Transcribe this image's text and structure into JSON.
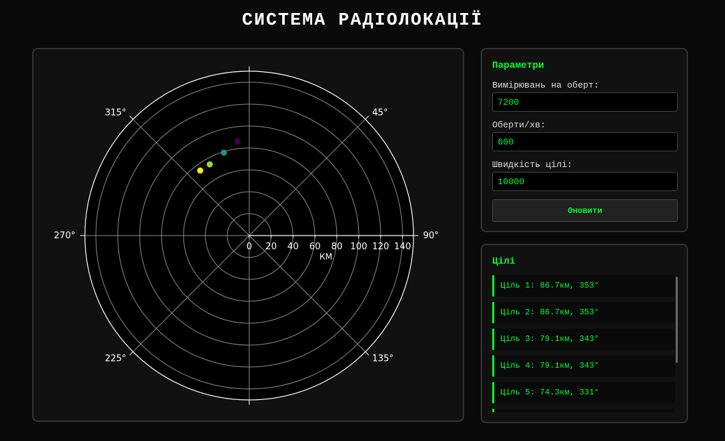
{
  "title": "СИСТЕМА РАДІОЛОКАЦІЇ",
  "params": {
    "heading": "Параметри",
    "fields": [
      {
        "label": "Вимірювань на оберт:",
        "value": "7200"
      },
      {
        "label": "Оберти/хв:",
        "value": "600"
      },
      {
        "label": "Швидкість цілі:",
        "value": "10000"
      }
    ],
    "button_label": "Оновити"
  },
  "targets": {
    "heading": "Цілі",
    "items": [
      "Ціль 1: 86.7км, 353°",
      "Ціль 2: 86.7км, 353°",
      "Ціль 3: 79.1км, 343°",
      "Ціль 4: 79.1км, 343°",
      "Ціль 5: 74.3км, 331°",
      ""
    ]
  },
  "chart_data": {
    "type": "scatter",
    "projection": "polar",
    "angle_ticks": [
      "45°",
      "90°",
      "135°",
      "225°",
      "270°",
      "315°"
    ],
    "angle_tick_values": [
      45,
      90,
      135,
      225,
      270,
      315
    ],
    "radial_ticks": [
      "0",
      "20",
      "40",
      "60",
      "80",
      "100",
      "120",
      "140"
    ],
    "radial_tick_values": [
      0,
      20,
      40,
      60,
      80,
      100,
      120,
      140
    ],
    "radial_label": "КМ",
    "rlim": [
      0,
      150
    ],
    "grid": true,
    "points": [
      {
        "angle": 353,
        "r": 86.7,
        "color": "#440154"
      },
      {
        "angle": 343,
        "r": 79.1,
        "color": "#21918c"
      },
      {
        "angle": 331,
        "r": 74.3,
        "color": "#90d743"
      },
      {
        "angle": 323,
        "r": 74.3,
        "color": "#fde725"
      }
    ]
  }
}
